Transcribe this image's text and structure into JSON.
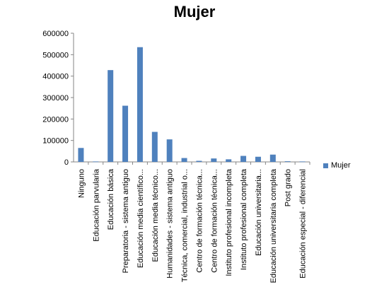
{
  "chart_data": {
    "type": "bar",
    "title": "Mujer",
    "xlabel": "",
    "ylabel": "",
    "ylim": [
      0,
      600000
    ],
    "yticks": [
      0,
      100000,
      200000,
      300000,
      400000,
      500000,
      600000
    ],
    "ytick_labels": [
      "0",
      "100000",
      "200000",
      "300000",
      "400000",
      "500000",
      "600000"
    ],
    "grid": false,
    "legend_position": "right",
    "categories": [
      "Ninguno",
      "Educación parvularia",
      "Educación básica",
      "Preparatoria - sistema antiguo",
      "Educación media científico...",
      "Educación media técnico...",
      "Humanidades - sistema antiguo",
      "Técnica, comercial, industrial o...",
      "Centro de formación técnica...",
      "Centro de formación técnica...",
      "Instituto profesional incompleta",
      "Instituto profesional completa",
      "Educación universitaria...",
      "Educación universitaria completa",
      "Post grado",
      "Educación especial - diferencial"
    ],
    "series": [
      {
        "name": "Mujer",
        "color": "#4f81bd",
        "values": [
          65000,
          2000,
          428000,
          262000,
          535000,
          140000,
          105000,
          18000,
          5000,
          16000,
          12000,
          28000,
          24000,
          34000,
          3000,
          2000
        ]
      }
    ]
  }
}
